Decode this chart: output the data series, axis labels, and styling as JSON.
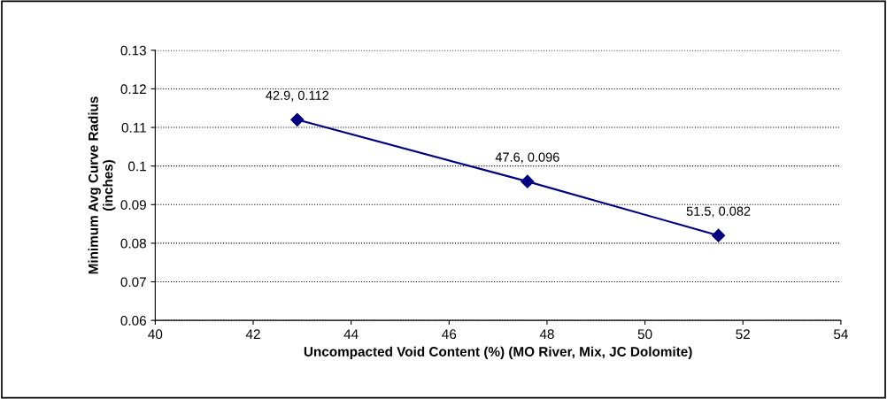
{
  "chart_data": {
    "type": "line",
    "xlabel": "Uncompacted Void Content (%) (MO River, Mix, JC Dolomite)",
    "ylabel": "Minimum Avg Curve Radius\n(inches)",
    "x": [
      42.9,
      47.6,
      51.5
    ],
    "series": [
      {
        "color": "#000080",
        "values": [
          0.112,
          0.096,
          0.082
        ],
        "value_labels": [
          "42.9, 0.112",
          "47.6, 0.096",
          "51.5, 0.082"
        ]
      }
    ],
    "xlim": [
      40,
      54
    ],
    "xticks": [
      40,
      42,
      44,
      46,
      48,
      50,
      52,
      54
    ],
    "ylim": [
      0.06,
      0.13
    ],
    "yticks": [
      0.06,
      0.07,
      0.08,
      0.09,
      0.1,
      0.11,
      0.12,
      0.13
    ],
    "grid": "y",
    "marker": "diamond",
    "line_style": "solid",
    "legend": false
  }
}
